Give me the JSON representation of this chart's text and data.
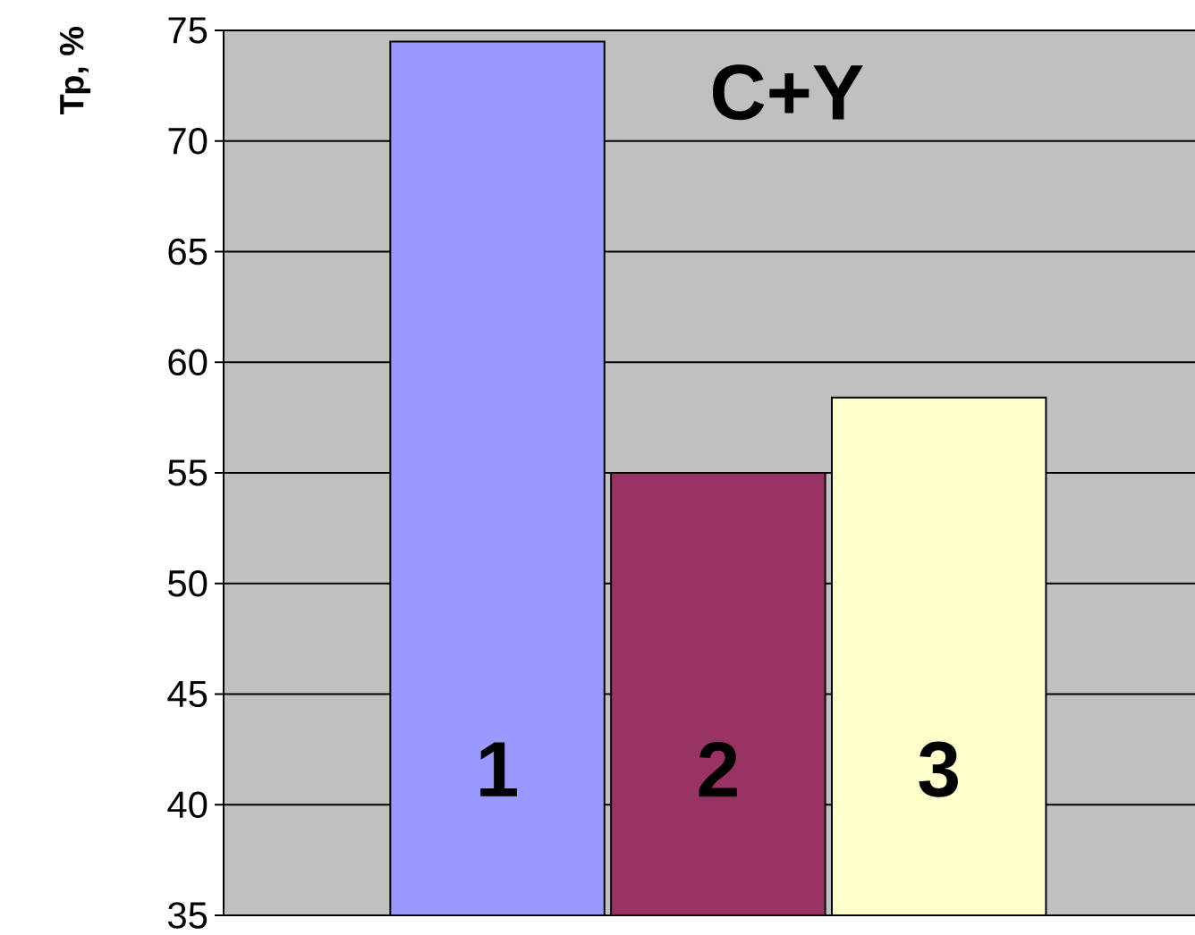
{
  "chart_data": {
    "type": "bar",
    "title": "C+Y",
    "ylabel": "Тр, %",
    "categories": [
      "1",
      "2",
      "3"
    ],
    "values": [
      74.5,
      55,
      58.4
    ],
    "colors": [
      "#9999ff",
      "#993366",
      "#ffffcc"
    ],
    "ylim": [
      35,
      75
    ],
    "yticks": [
      35,
      40,
      45,
      50,
      55,
      60,
      65,
      70,
      75
    ],
    "grid": "y"
  }
}
